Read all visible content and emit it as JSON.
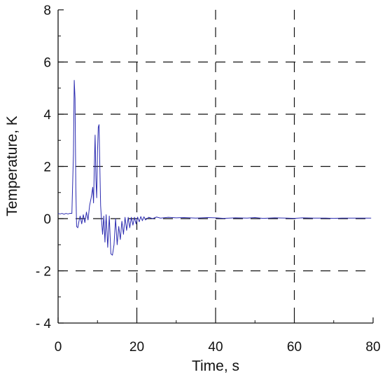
{
  "chart_data": {
    "type": "line",
    "xlabel": "Time, s",
    "ylabel": "Temperature, K",
    "xlim": [
      0,
      80
    ],
    "ylim": [
      -4,
      8
    ],
    "x_ticks": [
      0,
      20,
      40,
      60,
      80
    ],
    "y_ticks": [
      8,
      6,
      4,
      2,
      0,
      -2,
      -4
    ],
    "x_tick_labels": [
      "0",
      "20",
      "40",
      "60",
      "80"
    ],
    "y_tick_labels": [
      "8",
      "6",
      "4",
      "2",
      "0",
      "- 2",
      "- 4"
    ],
    "grid": "dashed",
    "series": [
      {
        "color": "#2b2bb0",
        "x": [
          0,
          0.5,
          1,
          1.5,
          2,
          2.5,
          3,
          3.5,
          3.9,
          4.1,
          4.3,
          4.5,
          4.7,
          5.0,
          5.3,
          5.6,
          6.0,
          6.4,
          6.8,
          7.2,
          7.6,
          8.0,
          8.4,
          8.8,
          9.0,
          9.2,
          9.4,
          9.6,
          9.8,
          10.0,
          10.2,
          10.4,
          10.6,
          10.8,
          11.0,
          11.3,
          11.6,
          11.9,
          12.2,
          12.6,
          13.0,
          13.4,
          13.8,
          14.2,
          14.6,
          15.0,
          15.4,
          15.8,
          16.2,
          16.6,
          17.0,
          17.4,
          17.8,
          18.2,
          18.6,
          19.0,
          19.4,
          19.8,
          20.2,
          20.6,
          21.0,
          21.4,
          21.8,
          22.2,
          23.0,
          24.0,
          25.0,
          26.0,
          28.0,
          30.0,
          32.0,
          35.0,
          38.0,
          40.0,
          42.0,
          45.0,
          48.0,
          50.0,
          52.0,
          55.0,
          58.0,
          60.0,
          62.0,
          65.0,
          68.0,
          70.0,
          72.0,
          75.0,
          78.0,
          79.5
        ],
        "y": [
          0.2,
          0.18,
          0.2,
          0.17,
          0.2,
          0.18,
          0.2,
          0.2,
          2.5,
          5.3,
          4.6,
          1.2,
          -0.3,
          -0.35,
          -0.1,
          0.1,
          -0.2,
          0.15,
          -0.15,
          0.25,
          -0.05,
          0.5,
          0.8,
          1.2,
          0.6,
          2.0,
          3.2,
          1.5,
          0.8,
          2.5,
          3.5,
          3.6,
          2.0,
          0.5,
          0.0,
          -0.6,
          0.1,
          -0.9,
          0.15,
          -1.1,
          0.1,
          -1.35,
          -1.4,
          -1.0,
          0.0,
          -1.0,
          -0.3,
          -0.8,
          -0.1,
          -0.6,
          0.05,
          -0.45,
          0.05,
          -0.35,
          0.05,
          -0.25,
          0.05,
          -0.2,
          0.06,
          -0.12,
          0.08,
          -0.08,
          0.07,
          -0.05,
          0.05,
          0.0,
          0.06,
          0.02,
          0.05,
          0.03,
          0.04,
          0.02,
          0.04,
          0.03,
          0.01,
          0.03,
          0.02,
          0.04,
          0.01,
          0.03,
          0.02,
          0.01,
          0.03,
          0.02,
          0.02,
          0.01,
          0.02,
          0.02,
          0.02,
          0.02
        ]
      }
    ]
  }
}
